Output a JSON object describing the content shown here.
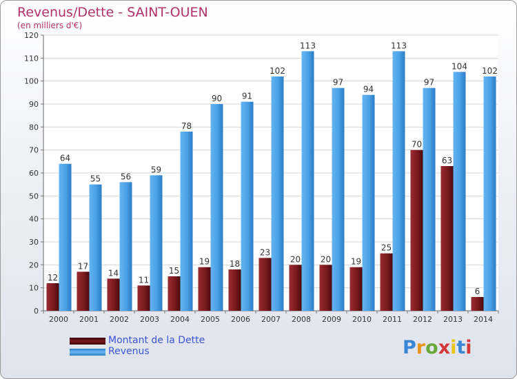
{
  "header": {
    "title": "Revenus/Dette - SAINT-OUEN",
    "subtitle": "(en milliers d'€)"
  },
  "legend": [
    {
      "label": "Montant de la Dette",
      "color": "#7a1a1f"
    },
    {
      "label": "Revenus",
      "color": "#4aa0e6"
    }
  ],
  "logo": {
    "text": "Proxiti",
    "letter_colors": [
      "#3b86d6",
      "#e8941b",
      "#6aa83a",
      "#d23a3a",
      "#e8c51b",
      "#3b86d6",
      "#d23a3a"
    ]
  },
  "chart_data": {
    "type": "bar",
    "title": "Revenus/Dette - SAINT-OUEN",
    "subtitle": "(en milliers d'€)",
    "xlabel": "",
    "ylabel": "",
    "ylim": [
      0,
      120
    ],
    "yticks": [
      0,
      10,
      20,
      30,
      40,
      50,
      60,
      70,
      80,
      90,
      100,
      110,
      120
    ],
    "grid": true,
    "legend_position": "bottom-left",
    "categories": [
      "2000",
      "2001",
      "2002",
      "2003",
      "2004",
      "2005",
      "2006",
      "2007",
      "2008",
      "2009",
      "2010",
      "2011",
      "2012",
      "2013",
      "2014"
    ],
    "series": [
      {
        "name": "Montant de la Dette",
        "color": "#7a1a1f",
        "values": [
          12,
          17,
          14,
          11,
          15,
          19,
          18,
          23,
          20,
          20,
          19,
          25,
          70,
          63,
          6
        ]
      },
      {
        "name": "Revenus",
        "color": "#4aa0e6",
        "values": [
          64,
          55,
          56,
          59,
          78,
          90,
          91,
          102,
          113,
          97,
          94,
          113,
          97,
          104,
          102
        ]
      }
    ]
  }
}
